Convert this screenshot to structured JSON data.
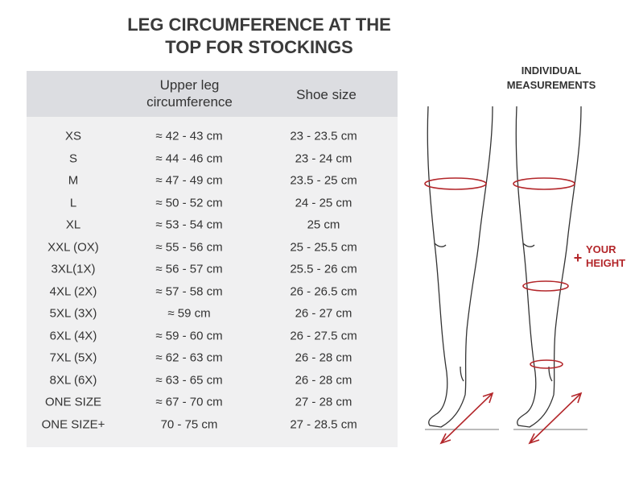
{
  "title": [
    "LEG CIRCUMFERENCE AT THE",
    "TOP FOR STOCKINGS"
  ],
  "table": {
    "columns": [
      "Upper leg circumference",
      "Shoe size"
    ],
    "rows": [
      [
        "XS",
        "≈ 42 - 43 cm",
        "23 - 23.5 cm"
      ],
      [
        "S",
        "≈ 44 - 46 cm",
        "23 - 24 cm"
      ],
      [
        "M",
        "≈ 47 - 49 cm",
        "23.5 - 25 cm"
      ],
      [
        "L",
        "≈ 50 - 52 cm",
        "24 - 25 cm"
      ],
      [
        "XL",
        "≈ 53 - 54 cm",
        "25 cm"
      ],
      [
        "XXL (OX)",
        "≈ 55 - 56 cm",
        "25 - 25.5 cm"
      ],
      [
        "3XL(1X)",
        "≈ 56 - 57 cm",
        "25.5 - 26 cm"
      ],
      [
        "4XL (2X)",
        "≈ 57 - 58 cm",
        "26 - 26.5 cm"
      ],
      [
        "5XL (3X)",
        "≈ 59 cm",
        "26 - 27 cm"
      ],
      [
        "6XL (4X)",
        "≈ 59 - 60 cm",
        "26 - 27.5 cm"
      ],
      [
        "7XL  (5X)",
        "≈ 62 - 63 cm",
        "26 - 28 cm"
      ],
      [
        "8XL  (6X)",
        "≈ 63 - 65 cm",
        "26 - 28 cm"
      ],
      [
        "ONE SIZE",
        "≈ 67 - 70 cm",
        "27 - 28 cm"
      ],
      [
        "ONE SIZE+",
        "70 - 75 cm",
        "27 - 28.5 cm"
      ]
    ]
  },
  "illustration": {
    "heading": [
      "INDIVIDUAL",
      "MEASUREMENTS"
    ],
    "plus": "+",
    "note": [
      "YOUR",
      "HEIGHT"
    ]
  }
}
